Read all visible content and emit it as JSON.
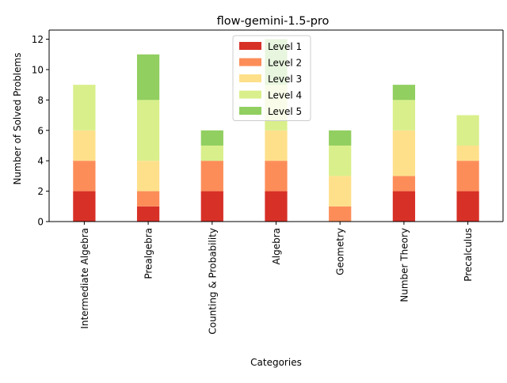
{
  "chart_data": {
    "type": "bar",
    "stacked": true,
    "title": "flow-gemini-1.5-pro",
    "xlabel": "Categories",
    "ylabel": "Number of Solved Problems",
    "ylim": [
      0,
      12.6
    ],
    "yticks": [
      0,
      2,
      4,
      6,
      8,
      10,
      12
    ],
    "categories": [
      "Intermediate Algebra",
      "Prealgebra",
      "Counting & Probability",
      "Algebra",
      "Geometry",
      "Number Theory",
      "Precalculus"
    ],
    "series": [
      {
        "name": "Level 1",
        "color": "#d73027",
        "values": [
          2,
          1,
          2,
          2,
          0,
          2,
          2
        ]
      },
      {
        "name": "Level 2",
        "color": "#fc8d59",
        "values": [
          2,
          1,
          2,
          2,
          1,
          1,
          2
        ]
      },
      {
        "name": "Level 3",
        "color": "#fee08b",
        "values": [
          2,
          2,
          0,
          2,
          2,
          3,
          1
        ]
      },
      {
        "name": "Level 4",
        "color": "#d9ef8b",
        "values": [
          3,
          4,
          1,
          3,
          2,
          2,
          2
        ]
      },
      {
        "name": "Level 5",
        "color": "#91cf60",
        "values": [
          0,
          3,
          1,
          3,
          1,
          1,
          0
        ]
      }
    ],
    "grid": false,
    "legend_position": "top-center"
  }
}
